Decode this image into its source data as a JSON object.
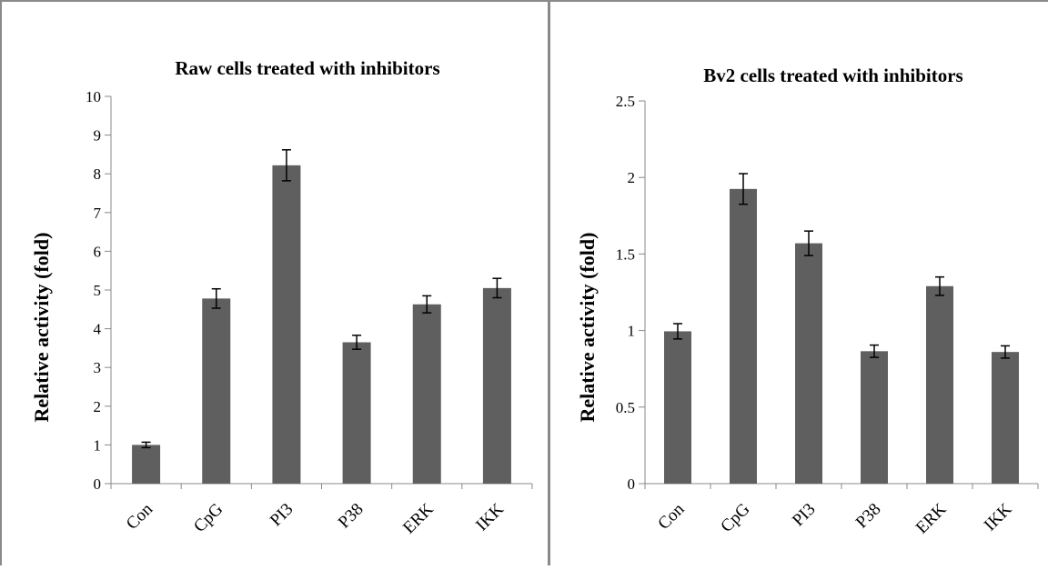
{
  "chart_data": [
    {
      "type": "bar",
      "title": "Raw cells treated with inhibitors",
      "ylabel": "Relative activity (fold)",
      "xlabel": "",
      "categories": [
        "Con",
        "CpG",
        "PI3",
        "P38",
        "ERK",
        "IKK"
      ],
      "values": [
        1.0,
        4.78,
        8.22,
        3.65,
        4.63,
        5.05
      ],
      "errors": [
        0.07,
        0.25,
        0.4,
        0.18,
        0.22,
        0.25
      ],
      "ylim": [
        0,
        10
      ],
      "yticks": [
        "0",
        "1",
        "2",
        "3",
        "4",
        "5",
        "6",
        "7",
        "8",
        "9",
        "10"
      ],
      "grid": false,
      "bar_color": "#5f5f5f"
    },
    {
      "type": "bar",
      "title": "Bv2 cells treated with inhibitors",
      "ylabel": "Relative activity (fold)",
      "xlabel": "",
      "categories": [
        "Con",
        "CpG",
        "PI3",
        "P38",
        "ERK",
        "IKK"
      ],
      "values": [
        0.995,
        1.925,
        1.57,
        0.865,
        1.29,
        0.86
      ],
      "errors": [
        0.05,
        0.1,
        0.08,
        0.04,
        0.06,
        0.04
      ],
      "ylim": [
        0,
        2.5
      ],
      "yticks": [
        "0",
        "0.5",
        "1",
        "1.5",
        "2",
        "2.5"
      ],
      "grid": false,
      "bar_color": "#5f5f5f"
    }
  ]
}
